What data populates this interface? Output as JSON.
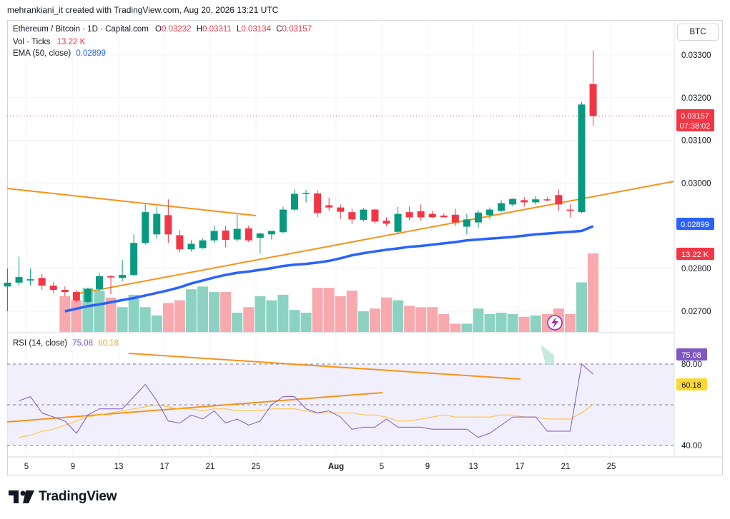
{
  "header": {
    "caption": "mehrankiani_it created with TradingView.com, Aug 20, 2026 13:21 UTC"
  },
  "symbol": {
    "title": "Ethereum / Bitcoin · 1D · Capital.com",
    "o_label": "O",
    "o": "0.03232",
    "h_label": "H",
    "h": "0.03311",
    "l_label": "L",
    "l": "0.03134",
    "c_label": "C",
    "c": "0.03157"
  },
  "volume": {
    "label": "Vol · Ticks",
    "value": "13.22 K"
  },
  "ema": {
    "label": "EMA (50, close)",
    "value": "0.02899"
  },
  "rsi": {
    "label": "RSI (14, close)",
    "value": "75.08",
    "ma_value": "60.18"
  },
  "currency_button": "BTC",
  "price_axis": {
    "ticks": [
      "0.03300",
      "0.03200",
      "0.03100",
      "0.03000",
      "0.02800",
      "0.02700"
    ]
  },
  "price_badges": {
    "last": "0.03157",
    "countdown": "07:38:02",
    "ema": "0.02899",
    "volume": "13.22 K"
  },
  "rsi_axis": {
    "ticks": [
      "80.00",
      "40.00"
    ],
    "value_badge": "75.08",
    "ma_badge": "60.18"
  },
  "time_axis": {
    "ticks": [
      "5",
      "9",
      "13",
      "17",
      "21",
      "25",
      "Aug",
      "5",
      "9",
      "13",
      "17",
      "21",
      "25"
    ]
  },
  "logo_text": "TradingView",
  "colors": {
    "up": "#089981",
    "down": "#f23645",
    "ema": "#2962ff",
    "trend": "#f7931a",
    "rsi": "#7e57c2",
    "rsi_ma": "#fdd835"
  },
  "chart_data": {
    "type": "candlestick",
    "x_ticks": [
      "5",
      "9",
      "13",
      "17",
      "21",
      "25",
      "Aug",
      "5",
      "9",
      "13",
      "17",
      "21",
      "25"
    ],
    "y_ticks": [
      0.033,
      0.032,
      0.031,
      0.03,
      0.028,
      0.027
    ],
    "candles": [
      {
        "o": 0.02758,
        "h": 0.028,
        "l": 0.027,
        "c": 0.02767
      },
      {
        "o": 0.02767,
        "h": 0.02828,
        "l": 0.0276,
        "c": 0.0278
      },
      {
        "o": 0.02772,
        "h": 0.028,
        "l": 0.0276,
        "c": 0.02775
      },
      {
        "o": 0.02778,
        "h": 0.02787,
        "l": 0.0275,
        "c": 0.0276
      },
      {
        "o": 0.0276,
        "h": 0.02768,
        "l": 0.02742,
        "c": 0.0275
      },
      {
        "o": 0.0275,
        "h": 0.02758,
        "l": 0.02735,
        "c": 0.02745
      },
      {
        "o": 0.02745,
        "h": 0.0275,
        "l": 0.0272,
        "c": 0.02725
      },
      {
        "o": 0.02722,
        "h": 0.02755,
        "l": 0.02719,
        "c": 0.02752
      },
      {
        "o": 0.02752,
        "h": 0.0279,
        "l": 0.02748,
        "c": 0.02782
      },
      {
        "o": 0.02782,
        "h": 0.02785,
        "l": 0.0274,
        "c": 0.02779
      },
      {
        "o": 0.02778,
        "h": 0.0282,
        "l": 0.0277,
        "c": 0.02785
      },
      {
        "o": 0.02785,
        "h": 0.0288,
        "l": 0.02782,
        "c": 0.0286
      },
      {
        "o": 0.0286,
        "h": 0.0295,
        "l": 0.02856,
        "c": 0.02932
      },
      {
        "o": 0.0288,
        "h": 0.02945,
        "l": 0.0287,
        "c": 0.02928
      },
      {
        "o": 0.02925,
        "h": 0.02962,
        "l": 0.0286,
        "c": 0.0288
      },
      {
        "o": 0.02878,
        "h": 0.0289,
        "l": 0.02838,
        "c": 0.02845
      },
      {
        "o": 0.02845,
        "h": 0.02866,
        "l": 0.0284,
        "c": 0.02858
      },
      {
        "o": 0.02848,
        "h": 0.0287,
        "l": 0.02846,
        "c": 0.02866
      },
      {
        "o": 0.02866,
        "h": 0.029,
        "l": 0.0286,
        "c": 0.02888
      },
      {
        "o": 0.02889,
        "h": 0.029,
        "l": 0.0285,
        "c": 0.02867
      },
      {
        "o": 0.02868,
        "h": 0.02926,
        "l": 0.02863,
        "c": 0.02893
      },
      {
        "o": 0.02894,
        "h": 0.029,
        "l": 0.02862,
        "c": 0.02866
      },
      {
        "o": 0.02872,
        "h": 0.02884,
        "l": 0.02835,
        "c": 0.02882
      },
      {
        "o": 0.0288,
        "h": 0.02888,
        "l": 0.02868,
        "c": 0.02888
      },
      {
        "o": 0.02885,
        "h": 0.02945,
        "l": 0.02883,
        "c": 0.02938
      },
      {
        "o": 0.02938,
        "h": 0.02985,
        "l": 0.02935,
        "c": 0.02975
      },
      {
        "o": 0.02975,
        "h": 0.02984,
        "l": 0.02955,
        "c": 0.02977
      },
      {
        "o": 0.02976,
        "h": 0.02983,
        "l": 0.0292,
        "c": 0.0293
      },
      {
        "o": 0.02948,
        "h": 0.02966,
        "l": 0.02935,
        "c": 0.02943
      },
      {
        "o": 0.02943,
        "h": 0.0295,
        "l": 0.02916,
        "c": 0.02933
      },
      {
        "o": 0.02932,
        "h": 0.0294,
        "l": 0.02905,
        "c": 0.02915
      },
      {
        "o": 0.02914,
        "h": 0.02942,
        "l": 0.0291,
        "c": 0.02938
      },
      {
        "o": 0.02938,
        "h": 0.0294,
        "l": 0.02905,
        "c": 0.0291
      },
      {
        "o": 0.02912,
        "h": 0.0292,
        "l": 0.029,
        "c": 0.02905
      },
      {
        "o": 0.02886,
        "h": 0.02944,
        "l": 0.0288,
        "c": 0.02928
      },
      {
        "o": 0.02932,
        "h": 0.02945,
        "l": 0.02913,
        "c": 0.0292
      },
      {
        "o": 0.02934,
        "h": 0.0295,
        "l": 0.02912,
        "c": 0.0292
      },
      {
        "o": 0.02928,
        "h": 0.02935,
        "l": 0.02918,
        "c": 0.0292
      },
      {
        "o": 0.02924,
        "h": 0.02929,
        "l": 0.0292,
        "c": 0.0292
      },
      {
        "o": 0.02926,
        "h": 0.0294,
        "l": 0.02899,
        "c": 0.02908
      },
      {
        "o": 0.02898,
        "h": 0.02928,
        "l": 0.0288,
        "c": 0.02915
      },
      {
        "o": 0.02908,
        "h": 0.02936,
        "l": 0.02895,
        "c": 0.02931
      },
      {
        "o": 0.02925,
        "h": 0.02943,
        "l": 0.02916,
        "c": 0.02938
      },
      {
        "o": 0.02935,
        "h": 0.0296,
        "l": 0.02932,
        "c": 0.02953
      },
      {
        "o": 0.0295,
        "h": 0.02965,
        "l": 0.02945,
        "c": 0.02963
      },
      {
        "o": 0.0296,
        "h": 0.02967,
        "l": 0.02945,
        "c": 0.02955
      },
      {
        "o": 0.02955,
        "h": 0.0297,
        "l": 0.0295,
        "c": 0.02962
      },
      {
        "o": 0.02962,
        "h": 0.02968,
        "l": 0.02957,
        "c": 0.02961
      },
      {
        "o": 0.02972,
        "h": 0.02985,
        "l": 0.02935,
        "c": 0.0295
      },
      {
        "o": 0.02938,
        "h": 0.0295,
        "l": 0.0292,
        "c": 0.02935
      },
      {
        "o": 0.02932,
        "h": 0.0319,
        "l": 0.0293,
        "c": 0.03184
      },
      {
        "o": 0.03232,
        "h": 0.03311,
        "l": 0.03134,
        "c": 0.03157
      }
    ],
    "volumes": [
      2.6,
      2.3,
      3.2,
      3.0,
      2.5,
      1.8,
      2.7,
      1.8,
      1.2,
      2.1,
      2.3,
      3.1,
      3.3,
      2.9,
      2.9,
      1.4,
      1.8,
      2.6,
      2.3,
      2.7,
      1.6,
      1.4,
      3.2,
      3.2,
      2.6,
      3.0,
      1.5,
      1.7,
      2.5,
      2.3,
      1.9,
      1.8,
      1.8,
      1.3,
      0.6,
      0.6,
      1.7,
      1.3,
      1.4,
      1.3,
      1.1,
      1.2,
      1.3,
      1.7,
      1.3,
      3.6,
      5.7
    ],
    "ema50": [
      0.027,
      0.02706,
      0.02712,
      0.02716,
      0.02721,
      0.02726,
      0.02731,
      0.02737,
      0.02743,
      0.02749,
      0.02756,
      0.02765,
      0.02772,
      0.02779,
      0.02785,
      0.0279,
      0.02793,
      0.02797,
      0.02801,
      0.02806,
      0.02809,
      0.02811,
      0.02814,
      0.02818,
      0.02824,
      0.02831,
      0.02836,
      0.0284,
      0.02844,
      0.02847,
      0.02851,
      0.02853,
      0.02856,
      0.02859,
      0.02862,
      0.02866,
      0.02868,
      0.0287,
      0.02872,
      0.02874,
      0.02877,
      0.0288,
      0.02882,
      0.02884,
      0.02886,
      0.02888,
      0.02899
    ],
    "rsi": [
      62,
      64,
      56,
      54,
      52,
      46,
      55,
      58,
      58,
      58,
      64,
      70,
      62,
      52,
      51,
      55,
      53,
      57,
      51,
      53,
      50,
      52,
      60,
      64,
      64,
      58,
      56,
      57,
      54,
      48,
      49,
      49,
      53,
      49,
      49,
      49,
      48,
      48,
      48,
      48,
      44,
      46,
      50,
      54,
      54,
      54,
      47,
      47,
      47,
      80,
      75.08
    ],
    "rsi_ma": [
      44,
      45,
      47,
      48,
      50,
      52,
      54,
      55,
      56,
      57,
      58,
      59,
      60,
      59,
      58,
      58,
      57,
      58,
      58,
      57,
      57,
      57,
      58,
      58,
      58,
      57,
      56,
      56,
      56,
      56,
      55,
      55,
      54,
      52,
      52,
      53,
      54,
      55,
      54,
      54,
      54,
      54,
      55,
      55,
      54,
      54,
      53,
      53,
      53,
      56,
      60.18
    ],
    "last_price": 0.03157
  }
}
